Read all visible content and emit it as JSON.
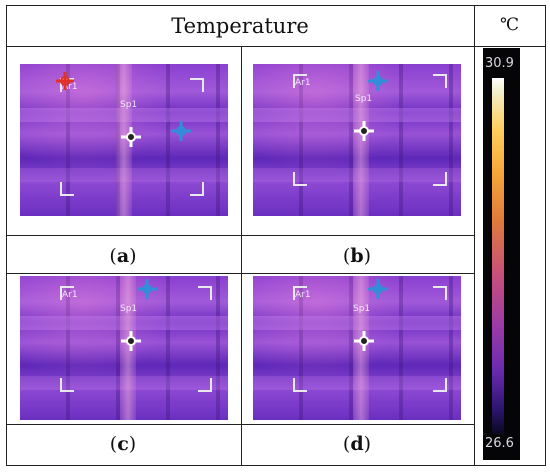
{
  "header": {
    "title": "Temperature",
    "unit": "℃"
  },
  "colorbar": {
    "max": "30.9",
    "min": "26.6"
  },
  "panels": [
    {
      "caption": "a",
      "spot_label": "Sp1",
      "area_label": "Ar1"
    },
    {
      "caption": "b",
      "spot_label": "Sp1",
      "area_label": "Ar1"
    },
    {
      "caption": "c",
      "spot_label": "Sp1",
      "area_label": "Ar1"
    },
    {
      "caption": "d",
      "spot_label": "Sp1",
      "area_label": "Ar1"
    }
  ],
  "colors": {
    "cold": "#6a2fc0",
    "hot": "#ffd060",
    "spot_cursor": "#2f8fd8",
    "hot_marker": "#e0302a"
  }
}
